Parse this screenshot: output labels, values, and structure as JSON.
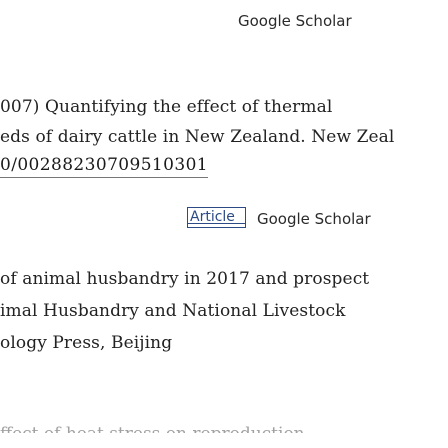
{
  "refs": [
    {
      "scholar_label": "Google Scholar",
      "lines": [],
      "doi": "",
      "article_label": ""
    },
    {
      "lines": [
        "007) Quantifying the effect of thermal",
        "eds of dairy cattle in New Zealand. New Zeal"
      ],
      "doi": "0/00288230709510301",
      "article_label": "Article",
      "scholar_label": "Google Scholar"
    },
    {
      "lines": [
        "of animal husbandry in 2017 and prospect",
        "imal Husbandry and National Livestock",
        "ology Press, Beijing"
      ]
    },
    {
      "partial_line": "ffect of heat stress on reproduction"
    }
  ]
}
